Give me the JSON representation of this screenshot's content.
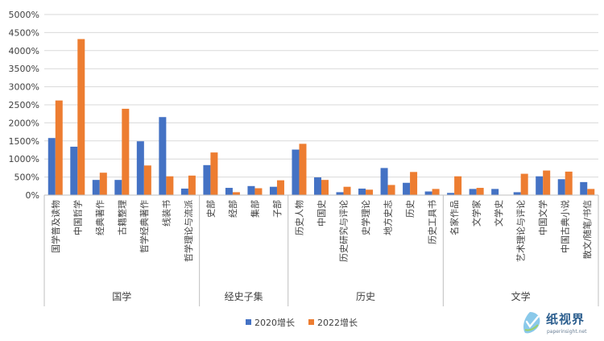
{
  "chart_data": {
    "type": "bar",
    "categories": [
      "国学普及读物",
      "中国哲学",
      "经典著作",
      "古籍整理",
      "哲学经典著作",
      "线装书",
      "哲学理论与流派",
      "史部",
      "经部",
      "集部",
      "子部",
      "历史人物",
      "中国史",
      "历史研究与评论",
      "史学理论",
      "地方史志",
      "历史",
      "历史工具书",
      "名家作品",
      "文学家",
      "文学史",
      "艺术理论与评论",
      "中国文学",
      "中国古典小说",
      "散文/随笔/书信"
    ],
    "groups": [
      {
        "name": "国学",
        "count": 7
      },
      {
        "name": "经史子集",
        "count": 4
      },
      {
        "name": "历史",
        "count": 7
      },
      {
        "name": "文学",
        "count": 7
      }
    ],
    "series": [
      {
        "name": "2020增长",
        "color": "#4472c4",
        "values": [
          1580,
          1340,
          420,
          420,
          1490,
          2160,
          180,
          830,
          200,
          250,
          230,
          1260,
          490,
          80,
          180,
          750,
          340,
          100,
          60,
          170,
          170,
          80,
          520,
          440,
          360
        ]
      },
      {
        "name": "2022增长",
        "color": "#ed7d31",
        "values": [
          2620,
          4320,
          620,
          2390,
          820,
          520,
          540,
          1180,
          80,
          190,
          410,
          1420,
          420,
          230,
          150,
          280,
          640,
          170,
          520,
          200,
          0,
          590,
          680,
          650,
          170
        ]
      }
    ],
    "ylim": [
      0,
      5000
    ],
    "yticks": [
      "0%",
      "500%",
      "1000%",
      "1500%",
      "2000%",
      "2500%",
      "3000%",
      "3500%",
      "4000%",
      "4500%",
      "5000%"
    ],
    "grid": true,
    "legend_position": "bottom"
  },
  "watermark": {
    "logo_icon": "paperinsight-logo-icon",
    "brand_text": "纸视界",
    "brand_url": "paperinsight.net"
  }
}
